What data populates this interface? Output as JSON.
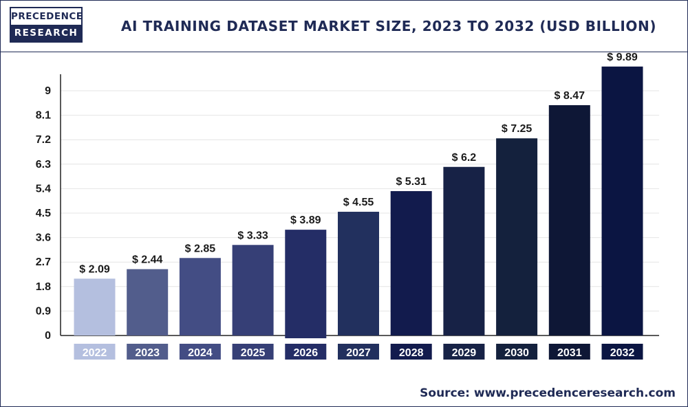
{
  "header": {
    "logo_top": "PRECEDENCE",
    "logo_bottom": "RESEARCH",
    "title": "AI TRAINING DATASET MARKET SIZE, 2023 TO 2032 (USD BILLION)"
  },
  "footer": {
    "source": "Source: www.precedenceresearch.com"
  },
  "chart_data": {
    "type": "bar",
    "title": "AI TRAINING DATASET MARKET SIZE, 2023 TO 2032 (USD BILLION)",
    "categories": [
      "2022",
      "2023",
      "2024",
      "2025",
      "2026",
      "2027",
      "2028",
      "2029",
      "2030",
      "2031",
      "2032"
    ],
    "values": [
      2.09,
      2.44,
      2.85,
      3.33,
      3.89,
      4.55,
      5.31,
      6.2,
      7.25,
      8.47,
      9.89
    ],
    "value_labels": [
      "$ 2.09",
      "$ 2.44",
      "$ 2.85",
      "$ 3.33",
      "$ 3.89",
      "$ 4.55",
      "$ 5.31",
      "$ 6.2",
      "$ 7.25",
      "$ 8.47",
      "$ 9.89"
    ],
    "colors": [
      "#b4bfdf",
      "#525d8c",
      "#434d84",
      "#363f76",
      "#242d66",
      "#22305e",
      "#121b4d",
      "#172246",
      "#14213d",
      "#0e1736",
      "#0b1542"
    ],
    "yticks": [
      0,
      0.9,
      1.8,
      2.7,
      3.6,
      4.5,
      5.4,
      6.3,
      7.2,
      8.1,
      9
    ],
    "ytick_labels": [
      "0",
      "0.9",
      "1.8",
      "2.7",
      "3.6",
      "4.5",
      "5.4",
      "6.3",
      "7.2",
      "8.1",
      "9"
    ],
    "ylim": [
      0,
      10
    ],
    "grid": true,
    "xlabel": "",
    "ylabel": ""
  }
}
